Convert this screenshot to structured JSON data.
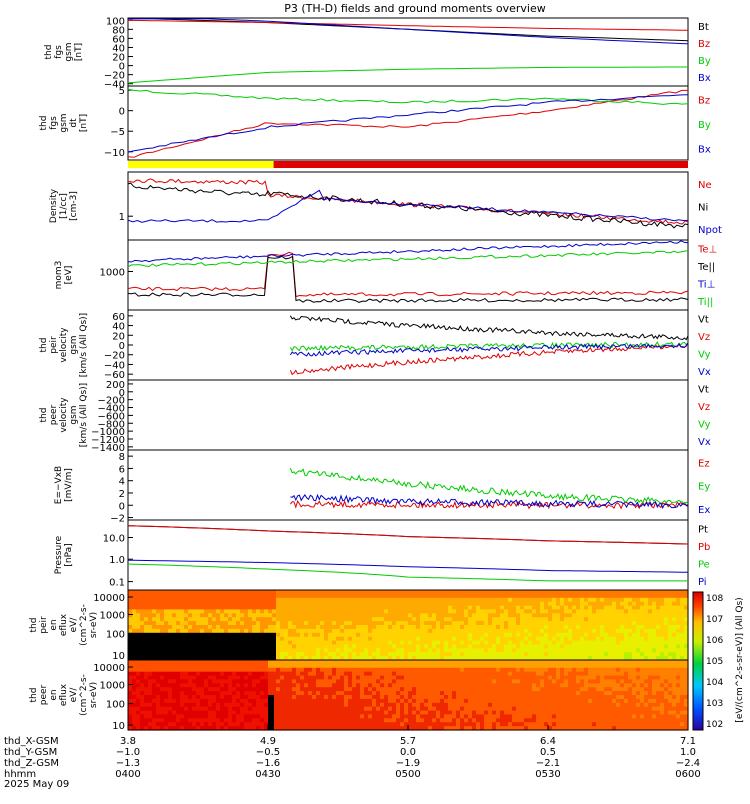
{
  "title": "P3 (TH-D) fields and ground moments overview",
  "colors": {
    "black": "#000000",
    "red": "#e00000",
    "green": "#00cc00",
    "blue": "#0000cc",
    "yellow": "#ffff00"
  },
  "panels": [
    {
      "id": "fgs_full",
      "ylabel": [
        "thd",
        "fgs",
        "gsm",
        "[nT]"
      ],
      "yticks": [
        "100",
        "80",
        "60",
        "40",
        "20",
        "0",
        "−20",
        "−40"
      ],
      "ylim": [
        -45,
        105
      ],
      "legend": [
        {
          "label": "Bt",
          "color": "black"
        },
        {
          "label": "Bz",
          "color": "red"
        },
        {
          "label": "By",
          "color": "green"
        },
        {
          "label": "Bx",
          "color": "blue"
        }
      ]
    },
    {
      "id": "fgs_dt",
      "ylabel": [
        "thd",
        "fgs",
        "gsm",
        "dt",
        "[nT]"
      ],
      "yticks": [
        "5",
        "0",
        "−5",
        "−10"
      ],
      "ylim": [
        -12,
        6
      ],
      "legend": [
        {
          "label": "Bz",
          "color": "red"
        },
        {
          "label": "By",
          "color": "green"
        },
        {
          "label": "Bx",
          "color": "blue"
        }
      ]
    },
    {
      "id": "density",
      "ylabel": [
        "Density",
        "[1/cc]",
        "[cm-3]"
      ],
      "yticks": [
        "1"
      ],
      "scale": "log",
      "legend": [
        {
          "label": "Ne",
          "color": "red"
        },
        {
          "label": "Ni",
          "color": "black"
        },
        {
          "label": "Npot",
          "color": "blue"
        }
      ]
    },
    {
      "id": "temperature",
      "ylabel": [
        "mom3",
        "[eV]"
      ],
      "yticks": [
        "1000"
      ],
      "scale": "log",
      "legend": [
        {
          "label": "Te⊥",
          "color": "red"
        },
        {
          "label": "Te||",
          "color": "black"
        },
        {
          "label": "Ti⊥",
          "color": "blue"
        },
        {
          "label": "Ti||",
          "color": "green"
        }
      ]
    },
    {
      "id": "peir_velocity",
      "ylabel": [
        "thd",
        "peir",
        "velocity",
        "gsm",
        "[km/s (All Qs)]"
      ],
      "yticks": [
        "60",
        "40",
        "20",
        "0",
        "−20",
        "−40",
        "−60"
      ],
      "ylim": [
        -72,
        72
      ],
      "legend": [
        {
          "label": "Vt",
          "color": "black"
        },
        {
          "label": "Vz",
          "color": "red"
        },
        {
          "label": "Vy",
          "color": "green"
        },
        {
          "label": "Vx",
          "color": "blue"
        }
      ]
    },
    {
      "id": "peer_velocity",
      "ylabel": [
        "thd",
        "peer",
        "velocity",
        "gsm",
        "[km/s (All Qs)]"
      ],
      "yticks": [
        "200",
        "0",
        "−200",
        "−400",
        "−600",
        "−800",
        "−1000",
        "−1200",
        "−1400"
      ],
      "ylim": [
        -1480,
        300
      ],
      "legend": [
        {
          "label": "Vt",
          "color": "black"
        },
        {
          "label": "Vz",
          "color": "red"
        },
        {
          "label": "Vy",
          "color": "green"
        },
        {
          "label": "Vx",
          "color": "blue"
        }
      ]
    },
    {
      "id": "efield",
      "ylabel": [
        "E=−VxB",
        "[mV/m]"
      ],
      "yticks": [
        "8",
        "6",
        "4",
        "2",
        "0",
        "−2"
      ],
      "ylim": [
        -2.4,
        9
      ],
      "legend": [
        {
          "label": "Ez",
          "color": "red"
        },
        {
          "label": "Ey",
          "color": "green"
        },
        {
          "label": "Ex",
          "color": "blue"
        }
      ]
    },
    {
      "id": "pressure",
      "ylabel": [
        "Pressure",
        "[nPa]"
      ],
      "yticks": [
        "10.0",
        "1.0",
        "0.1"
      ],
      "scale": "log",
      "legend": [
        {
          "label": "Pt",
          "color": "black"
        },
        {
          "label": "Pb",
          "color": "red"
        },
        {
          "label": "Pe",
          "color": "green"
        },
        {
          "label": "Pi",
          "color": "blue"
        }
      ]
    },
    {
      "id": "peir_spec",
      "ylabel": [
        "thd",
        "peir",
        "en",
        "eflux",
        "eV/",
        "(cm^2-s-",
        "sr-eV)"
      ],
      "yticks": [
        "10000",
        "1000",
        "100",
        "10"
      ],
      "scale": "log"
    },
    {
      "id": "peer_spec",
      "ylabel": [
        "thd",
        "peer",
        "en",
        "eflux",
        "eV/",
        "(cm^2-s-",
        "sr-eV)"
      ],
      "yticks": [
        "10000",
        "1000",
        "100",
        "10"
      ],
      "scale": "log"
    }
  ],
  "colorbar": {
    "label": "[eV/(cm^2-s-sr-eV)] (All Qs)",
    "ticks": [
      "10^8",
      "10^7",
      "10^6",
      "10^5",
      "10^4",
      "10^3",
      "10^2"
    ]
  },
  "xaxis": {
    "row_labels": [
      "thd_X-GSM",
      "thd_Y-GSM",
      "thd_Z-GSM",
      "hhmm",
      "2025 May 09"
    ],
    "columns": [
      {
        "X": "3.8",
        "Y": "−1.0",
        "Z": "−1.3",
        "hhmm": "0400"
      },
      {
        "X": "4.9",
        "Y": "−0.5",
        "Z": "−1.6",
        "hhmm": "0430"
      },
      {
        "X": "5.7",
        "Y": "0.0",
        "Z": "−1.9",
        "hhmm": "0500"
      },
      {
        "X": "6.4",
        "Y": "0.5",
        "Z": "−2.1",
        "hhmm": "0530"
      },
      {
        "X": "7.1",
        "Y": "1.0",
        "Z": "−2.4",
        "hhmm": "0600"
      }
    ]
  },
  "chart_data": {
    "type": "line",
    "title": "P3 (TH-D) fields and ground moments overview",
    "x": [
      "0400",
      "0430",
      "0500",
      "0530",
      "0600"
    ],
    "xlabel": "hhmm",
    "series": [
      {
        "name": "Bt",
        "panel": "fgs_full",
        "values": [
          105,
          95,
          80,
          65,
          55
        ]
      },
      {
        "name": "Bz",
        "panel": "fgs_full",
        "values": [
          100,
          95,
          88,
          82,
          78
        ]
      },
      {
        "name": "By",
        "panel": "fgs_full",
        "values": [
          -38,
          -15,
          -8,
          -4,
          -3
        ]
      },
      {
        "name": "Bx",
        "panel": "fgs_full",
        "values": [
          110,
          98,
          80,
          62,
          48
        ]
      },
      {
        "name": "Bz",
        "panel": "fgs_dt",
        "values": [
          -11.5,
          -3,
          -4,
          0,
          5
        ]
      },
      {
        "name": "By",
        "panel": "fgs_dt",
        "values": [
          5,
          3,
          2,
          3,
          1.5
        ]
      },
      {
        "name": "Bx",
        "panel": "fgs_dt",
        "values": [
          -10,
          -4,
          -1,
          2,
          4
        ]
      },
      {
        "name": "Vt",
        "panel": "peir_velocity",
        "values": [
          null,
          60,
          40,
          25,
          15
        ]
      },
      {
        "name": "Vz",
        "panel": "peir_velocity",
        "values": [
          null,
          -60,
          -35,
          -15,
          0
        ]
      },
      {
        "name": "Vy",
        "panel": "peir_velocity",
        "values": [
          null,
          -8,
          -4,
          -1,
          2
        ]
      },
      {
        "name": "Vx",
        "panel": "peir_velocity",
        "values": [
          null,
          -20,
          -12,
          -5,
          0
        ]
      },
      {
        "name": "Ez",
        "panel": "efield",
        "values": [
          null,
          0.2,
          0.1,
          0,
          0
        ]
      },
      {
        "name": "Ey",
        "panel": "efield",
        "values": [
          null,
          6,
          3.5,
          1.5,
          0.5
        ]
      },
      {
        "name": "Ex",
        "panel": "efield",
        "values": [
          null,
          1.5,
          0.6,
          0.3,
          0
        ]
      },
      {
        "name": "Pt",
        "panel": "pressure",
        "values": [
          35,
          20,
          11,
          7,
          5
        ]
      },
      {
        "name": "Pb",
        "panel": "pressure",
        "values": [
          35,
          20,
          11,
          7,
          5
        ]
      },
      {
        "name": "Pe",
        "panel": "pressure",
        "values": [
          0.6,
          0.35,
          0.15,
          0.1,
          0.1
        ]
      },
      {
        "name": "Pi",
        "panel": "pressure",
        "values": [
          0.9,
          0.7,
          0.45,
          0.3,
          0.25
        ]
      }
    ]
  }
}
